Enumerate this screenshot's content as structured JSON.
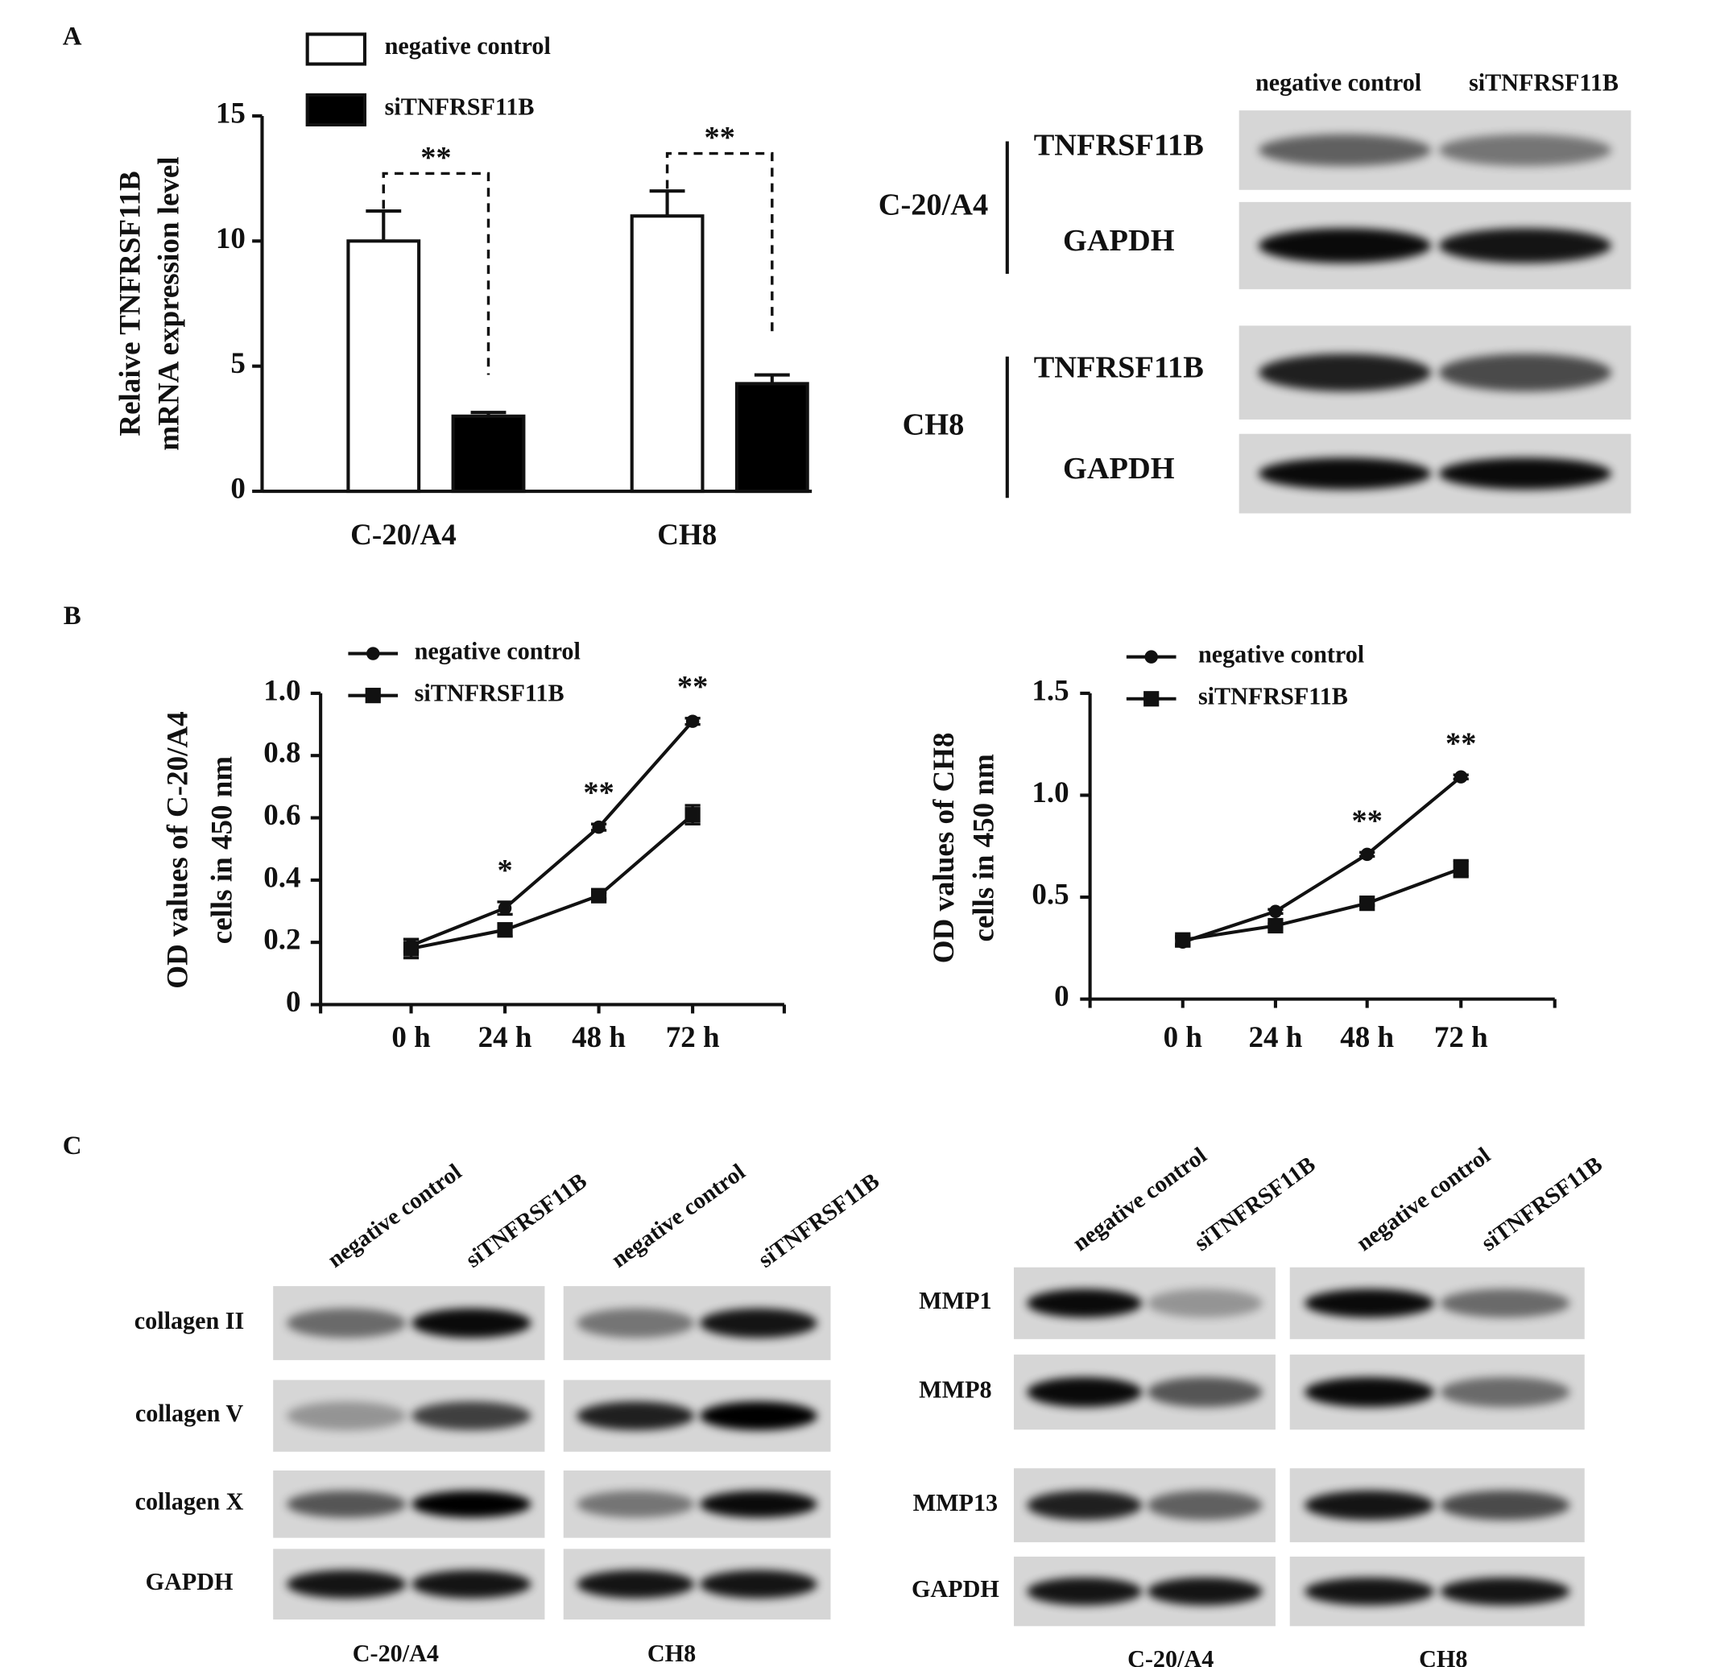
{
  "panel_labels": [
    "A",
    "B",
    "C"
  ],
  "chart_data": [
    {
      "type": "bar",
      "y_label": [
        "Relaive TNFRSF11B",
        "mRNA expression level"
      ],
      "categories": [
        "C-20/A4",
        "CH8"
      ],
      "series": [
        {
          "name": "negative control",
          "color": "#ffffff",
          "values": [
            10,
            11
          ],
          "errors": [
            1.2,
            1.0
          ]
        },
        {
          "name": "siTNFRSF11B",
          "color": "#000000",
          "values": [
            3,
            4.3
          ],
          "errors": [
            0.15,
            0.35
          ]
        }
      ],
      "ylim": [
        0,
        15
      ],
      "yticks": [
        0,
        5,
        10,
        15
      ],
      "significance": [
        "**",
        "**"
      ]
    },
    {
      "type": "line",
      "y_label": [
        "OD values of C-20/A4",
        "cells in  450 nm"
      ],
      "categories": [
        "0 h",
        "24 h",
        "48 h",
        "72 h"
      ],
      "series": [
        {
          "name": "negative control",
          "color": "#000000",
          "marker": "circle",
          "values": [
            0.19,
            0.31,
            0.57,
            0.91
          ],
          "errors": [
            0.02,
            0.02,
            0.01,
            0.01
          ]
        },
        {
          "name": "siTNFRSF11B",
          "color": "#000000",
          "marker": "square",
          "values": [
            0.18,
            0.24,
            0.35,
            0.61
          ],
          "errors": [
            0.03,
            0.02,
            0.01,
            0.03
          ]
        }
      ],
      "ylim": [
        0,
        1
      ],
      "yticks": [
        0,
        0.2,
        0.4,
        0.6,
        0.8,
        {
          "value": 1,
          "label": "1.0"
        }
      ],
      "significance": [
        null,
        "*",
        "**",
        "**"
      ]
    },
    {
      "type": "line",
      "y_label": [
        "OD values of CH8",
        "cells in 450 nm"
      ],
      "categories": [
        "0 h",
        "24 h",
        "48 h",
        "72 h"
      ],
      "series": [
        {
          "name": "negative control",
          "color": "#000000",
          "marker": "circle",
          "values": [
            0.28,
            0.43,
            0.71,
            1.09
          ],
          "errors": [
            0.02,
            0.01,
            0.01,
            0.01
          ]
        },
        {
          "name": "siTNFRSF11B",
          "color": "#000000",
          "marker": "square",
          "values": [
            0.29,
            0.36,
            0.47,
            0.64
          ],
          "errors": [
            0.02,
            0.01,
            0.01,
            0.04
          ]
        }
      ],
      "ylim": [
        0,
        1.5
      ],
      "yticks": [
        0,
        0.5,
        {
          "value": 1,
          "label": "1.0"
        },
        1.5
      ],
      "significance": [
        null,
        null,
        "**",
        "**"
      ]
    }
  ],
  "blots": [
    {
      "columns": [
        "negative control",
        "siTNFRSF11B"
      ],
      "groups": [
        {
          "cell": "C-20/A4",
          "rows": [
            "TNFRSF11B",
            "GAPDH"
          ]
        },
        {
          "cell": "CH8",
          "rows": [
            "TNFRSF11B",
            "GAPDH"
          ]
        }
      ]
    },
    {
      "columns": [
        "negative control",
        "siTNFRSF11B",
        "negative control",
        "siTNFRSF11B"
      ],
      "rows": [
        "collagen II",
        "collagen V",
        "collagen X",
        "GAPDH"
      ],
      "cells": [
        "C-20/A4",
        "CH8"
      ]
    },
    {
      "columns": [
        "negative control",
        "siTNFRSF11B",
        "negative control",
        "siTNFRSF11B"
      ],
      "rows": [
        "MMP1",
        "MMP8",
        "MMP13",
        "GAPDH"
      ],
      "cells": [
        "C-20/A4",
        "CH8"
      ]
    }
  ]
}
